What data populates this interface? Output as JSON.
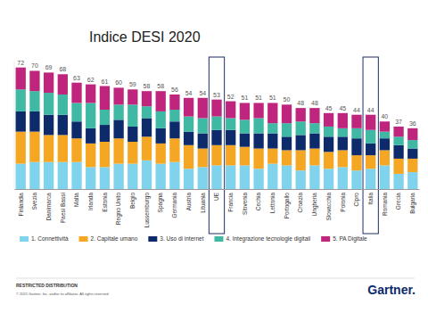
{
  "chart_data": {
    "type": "bar",
    "title": "Indice DESI 2020",
    "stacked": true,
    "tick_labels": "x",
    "legend": "bottom",
    "categories": [
      "Finlandia",
      "Svezia",
      "Danimarca",
      "Paesi Bassi",
      "Malta",
      "Irlanda",
      "Estonia",
      "Regno Unito",
      "Belgio",
      "Lussemburgo",
      "Spagna",
      "Germania",
      "Austria",
      "Lituania",
      "UE",
      "Francia",
      "Slovenia",
      "Cechia",
      "Lettonia",
      "Portogallo",
      "Croazia",
      "Ungheria",
      "Slovacchia",
      "Polonia",
      "Cipro",
      "Italia",
      "Romania",
      "Grecia",
      "Bulgaria"
    ],
    "series": [
      {
        "name": "1. Connettività",
        "color": "#7fd3ec",
        "values": [
          15,
          16,
          16,
          16,
          16,
          13,
          13,
          15,
          15,
          17,
          15,
          16,
          12,
          13,
          14,
          14,
          14,
          12,
          15,
          14,
          11,
          14,
          12,
          13,
          11,
          12,
          14,
          9,
          10
        ]
      },
      {
        "name": "2. Capitale umano",
        "color": "#f5a623",
        "values": [
          19,
          18,
          16,
          16,
          14,
          14,
          15,
          15,
          13,
          14,
          12,
          14,
          14,
          11,
          12,
          12,
          11,
          12,
          9,
          9,
          12,
          10,
          10,
          10,
          9,
          8,
          9,
          9,
          8
        ]
      },
      {
        "name": "3. Uso di internet",
        "color": "#0d2a6b",
        "values": [
          12,
          12,
          12,
          12,
          10,
          9,
          10,
          11,
          9,
          11,
          9,
          10,
          8,
          9,
          9,
          9,
          8,
          9,
          9,
          8,
          9,
          9,
          9,
          8,
          10,
          7,
          7,
          8,
          6
        ]
      },
      {
        "name": "4. Integrazione tecnologie digitali",
        "color": "#3fb8a4",
        "values": [
          13,
          12,
          13,
          12,
          11,
          15,
          9,
          9,
          13,
          7,
          10,
          7,
          9,
          9,
          8,
          7,
          8,
          9,
          6,
          8,
          8,
          6,
          6,
          5,
          6,
          8,
          4,
          5,
          5
        ]
      },
      {
        "name": "5. PA Digitale",
        "color": "#c0257e",
        "values": [
          13,
          12,
          12,
          12,
          12,
          11,
          14,
          10,
          9,
          9,
          12,
          9,
          11,
          12,
          10,
          10,
          10,
          9,
          12,
          11,
          8,
          9,
          8,
          9,
          8,
          9,
          6,
          6,
          7
        ]
      }
    ],
    "totals": [
      72,
      70,
      69,
      68,
      63,
      62,
      61,
      60,
      59,
      58,
      58,
      56,
      54,
      54,
      53,
      52,
      51,
      51,
      51,
      50,
      48,
      48,
      45,
      45,
      44,
      44,
      40,
      37,
      36
    ],
    "ylim": [
      0,
      75
    ],
    "footer": "RESTRICTED DISTRIBUTION",
    "copyright": "© 2021 Gartner, Inc. and/or its affiliates. All rights reserved.",
    "logo": "Gartner."
  }
}
